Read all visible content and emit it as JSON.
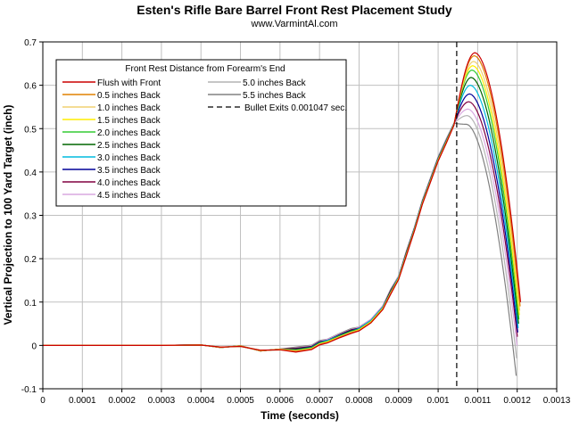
{
  "chart_data": {
    "type": "line",
    "title": "Esten's Rifle Bare Barrel Front Rest Placement Study",
    "subtitle": "www.VarmintAl.com",
    "xlabel": "Time (seconds)",
    "ylabel": "Vertical Projection to 100 Yard Target (inch)",
    "xlim": [
      0,
      0.0013
    ],
    "ylim": [
      -0.1,
      0.7
    ],
    "x_ticks": [
      "0",
      "0.0001",
      "0.0002",
      "0.0003",
      "0.0004",
      "0.0005",
      "0.0006",
      "0.0007",
      "0.0008",
      "0.0009",
      "0.001",
      "0.0011",
      "0.0012",
      "0.0013"
    ],
    "y_ticks": [
      "-0.1",
      "0",
      "0.1",
      "0.2",
      "0.3",
      "0.4",
      "0.5",
      "0.6",
      "0.7"
    ],
    "grid": true,
    "legend_title": "Front Rest Distance from Forearm's End",
    "legend_position": "top-left",
    "base_curve": {
      "x": [
        0,
        0.0001,
        0.0002,
        0.0003,
        0.00035,
        0.0004,
        0.00045,
        0.0005,
        0.00055,
        0.0006,
        0.00064,
        0.00068,
        0.0007,
        0.00072,
        0.00075,
        0.00078,
        0.0008,
        0.00083,
        0.00086,
        0.00088,
        0.0009,
        0.00092,
        0.00094,
        0.00096,
        0.00098,
        0.001,
        0.00102,
        0.00104
      ],
      "y": [
        0,
        0,
        0,
        0,
        0,
        0,
        -0.002,
        -0.005,
        -0.008,
        -0.013,
        -0.013,
        -0.005,
        0.005,
        0.013,
        0.022,
        0.03,
        0.04,
        0.06,
        0.09,
        0.12,
        0.16,
        0.21,
        0.27,
        0.33,
        0.38,
        0.43,
        0.47,
        0.51
      ]
    },
    "series": [
      {
        "name": "Flush with Front",
        "color": "#cc0000",
        "peak_x": 0.0010935,
        "peak_y": 0.675,
        "end_x": 0.0012085,
        "end_y": 0.1
      },
      {
        "name": "0.5 inches Back",
        "color": "#e08000",
        "peak_x": 0.001092,
        "peak_y": 0.668,
        "end_x": 0.0012075,
        "end_y": 0.09
      },
      {
        "name": "1.0 inches Back",
        "color": "#f0d070",
        "peak_x": 0.00109,
        "peak_y": 0.655,
        "end_x": 0.0012065,
        "end_y": 0.08
      },
      {
        "name": "1.5 inches Back",
        "color": "#ffee00",
        "peak_x": 0.001088,
        "peak_y": 0.645,
        "end_x": 0.0012055,
        "end_y": 0.07
      },
      {
        "name": "2.0 inches Back",
        "color": "#33cc33",
        "peak_x": 0.001086,
        "peak_y": 0.635,
        "end_x": 0.0012045,
        "end_y": 0.06
      },
      {
        "name": "2.5 inches Back",
        "color": "#006600",
        "peak_x": 0.001084,
        "peak_y": 0.618,
        "end_x": 0.0012035,
        "end_y": 0.05
      },
      {
        "name": "3.0 inches Back",
        "color": "#00bbdd",
        "peak_x": 0.001082,
        "peak_y": 0.6,
        "end_x": 0.0012025,
        "end_y": 0.04
      },
      {
        "name": "3.5 inches Back",
        "color": "#000099",
        "peak_x": 0.00108,
        "peak_y": 0.58,
        "end_x": 0.0012015,
        "end_y": 0.03
      },
      {
        "name": "4.0 inches Back",
        "color": "#800040",
        "peak_x": 0.001078,
        "peak_y": 0.562,
        "end_x": 0.0012005,
        "end_y": 0.02
      },
      {
        "name": "4.5 inches Back",
        "color": "#d8a8e0",
        "peak_x": 0.001076,
        "peak_y": 0.545,
        "end_x": 0.0011995,
        "end_y": 0.0
      },
      {
        "name": "5.0 inches Back",
        "color": "#b4b4b4",
        "peak_x": 0.001074,
        "peak_y": 0.53,
        "end_x": 0.0011985,
        "end_y": -0.03
      },
      {
        "name": "5.5 inches Back",
        "color": "#808080",
        "peak_x": 0.001072,
        "peak_y": 0.51,
        "end_x": 0.0011975,
        "end_y": -0.07
      }
    ],
    "annotation": {
      "name": "Bullet Exits 0.001047 sec.",
      "x": 0.001047,
      "style": "dashed",
      "color": "#000000"
    }
  }
}
